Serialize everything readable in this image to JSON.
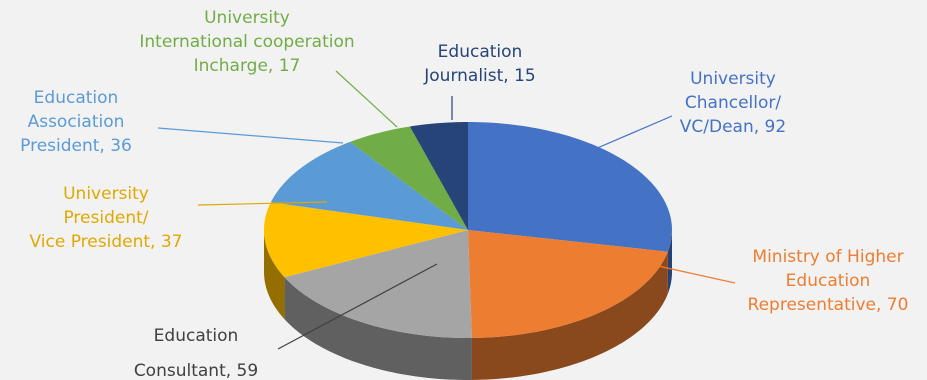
{
  "chart_data": {
    "type": "pie",
    "title": "",
    "units": "",
    "slices": [
      {
        "label": [
          "University",
          "Chancellor/",
          "VC/Dean, 92"
        ],
        "category": "University Chancellor/VC/Dean",
        "value": 92,
        "color": "#4472c4",
        "label_color": "#4472c4"
      },
      {
        "label": [
          "Ministry of Higher",
          "Education",
          "Representative, 70"
        ],
        "category": "Ministry of Higher Education Representative",
        "value": 70,
        "color": "#ed7d31",
        "label_color": "#ed7d31"
      },
      {
        "label": [
          "Education",
          "Consultant, 59"
        ],
        "category": "Education Consultant",
        "value": 59,
        "color": "#a5a5a5",
        "label_color": "#404040"
      },
      {
        "label": [
          "University",
          "President/",
          "Vice President, 37"
        ],
        "category": "University President/Vice President",
        "value": 37,
        "color": "#ffc000",
        "label_color": "#e0a800"
      },
      {
        "label": [
          "Education",
          "Association",
          "President, 36"
        ],
        "category": "Education Association President",
        "value": 36,
        "color": "#5b9bd5",
        "label_color": "#5b9bd5"
      },
      {
        "label": [
          "University",
          "International cooperation",
          "Incharge, 17"
        ],
        "category": "University International cooperation Incharge",
        "value": 17,
        "color": "#70ad47",
        "label_color": "#70ad47"
      },
      {
        "label": [
          "Education",
          "Journalist, 15"
        ],
        "category": "Education Journalist",
        "value": 15,
        "color": "#264478",
        "label_color": "#264478"
      }
    ]
  }
}
